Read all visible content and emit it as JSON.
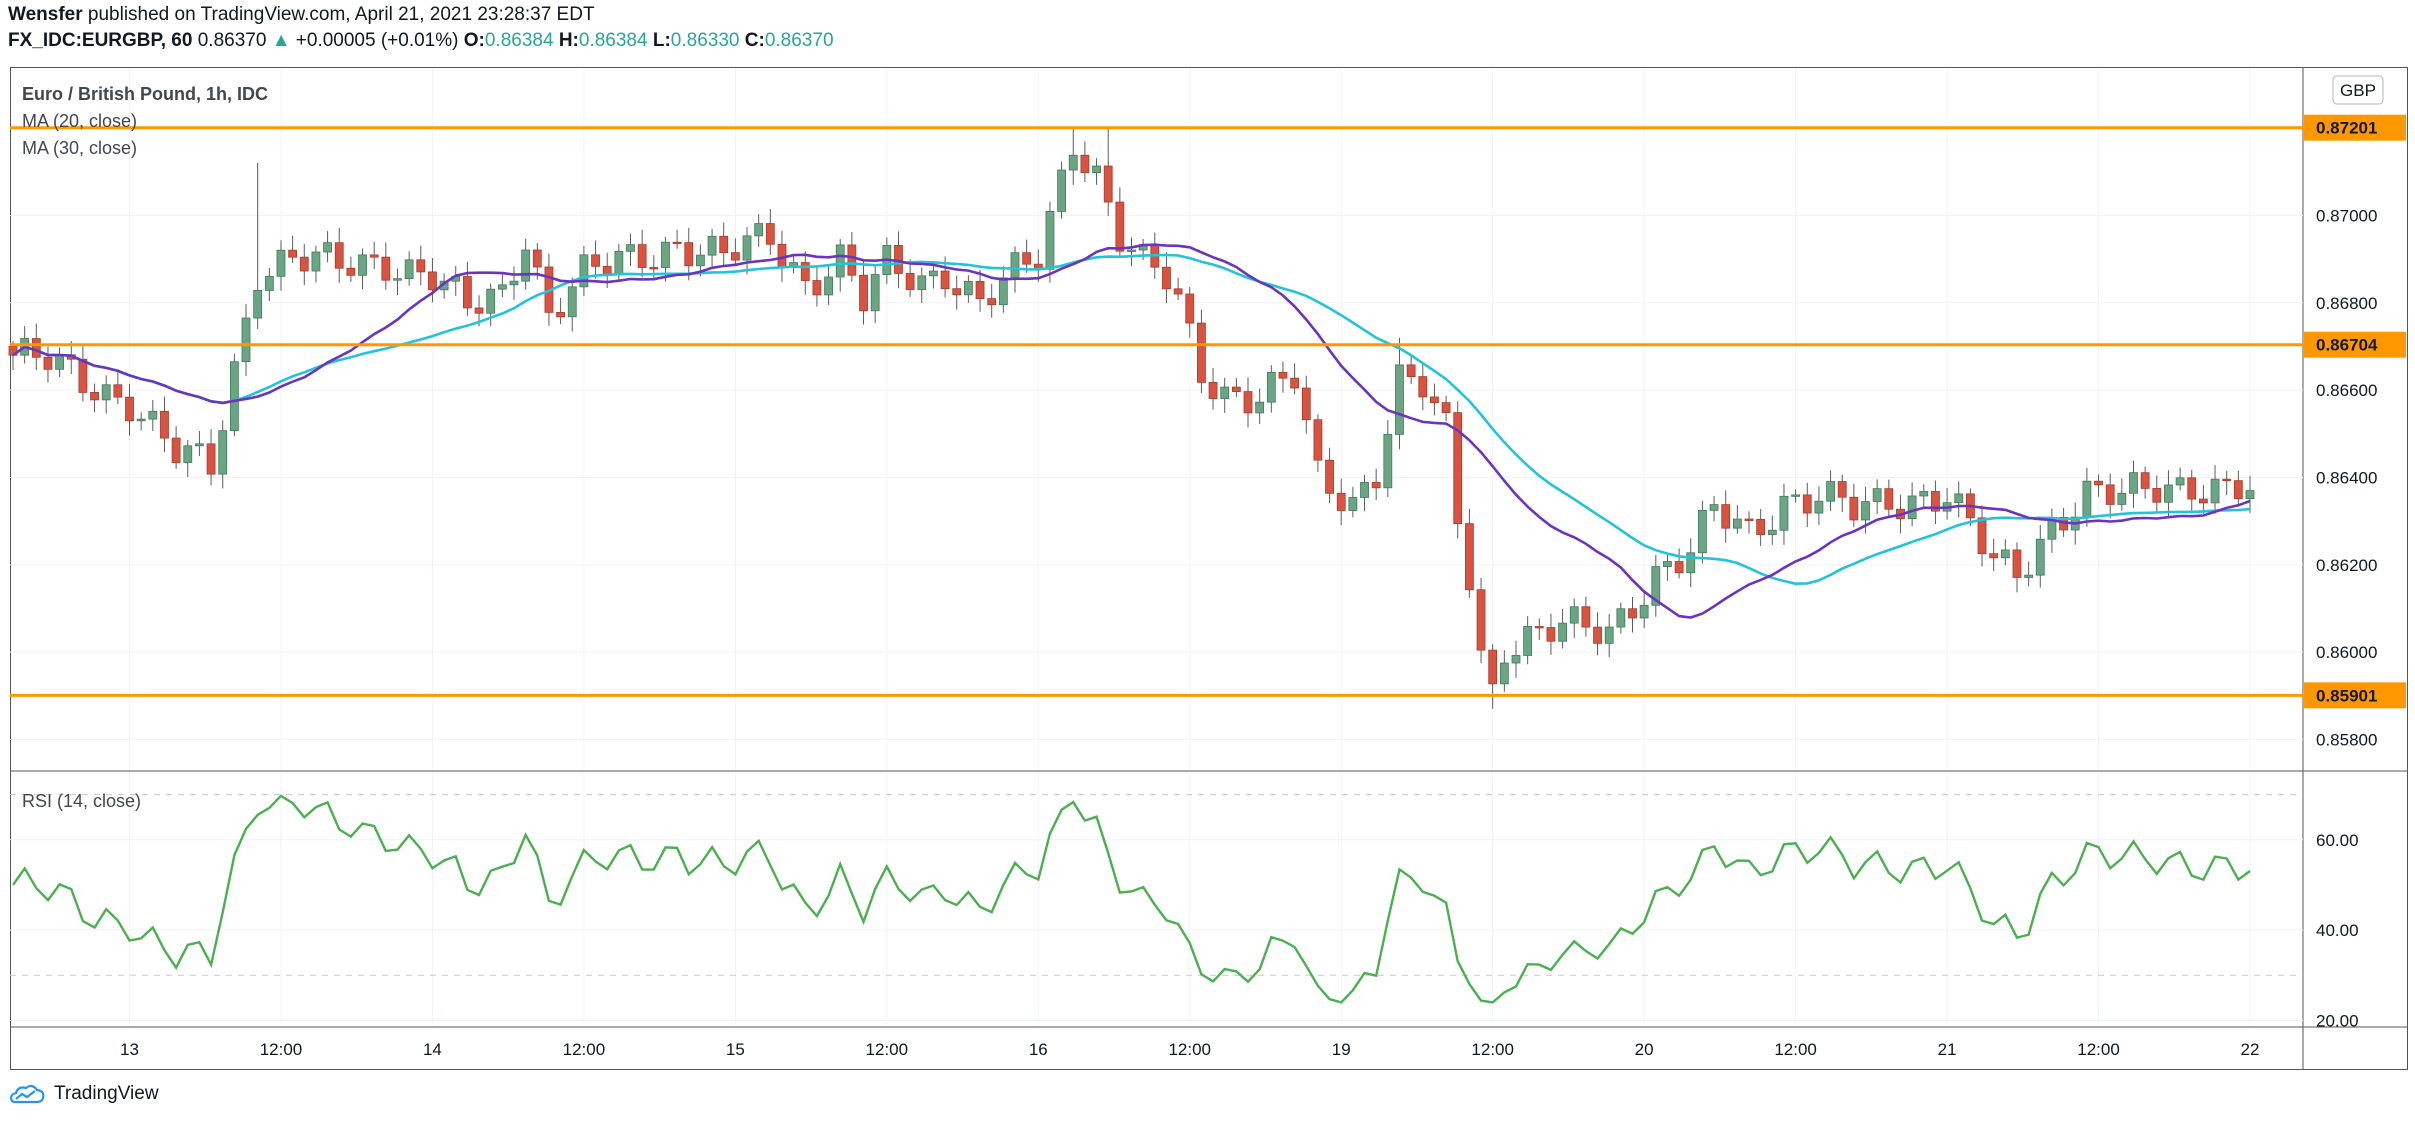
{
  "header": {
    "author": "Wensfer",
    "published_text": "published on TradingView.com, April 21, 2021 23:28:37 EDT",
    "symbol": "FX_IDC:EURGBP, 60",
    "last": "0.86370",
    "change": "+0.00005 (+0.01%)",
    "o_label": "O:",
    "o_value": "0.86384",
    "h_label": "H:",
    "h_value": "0.86384",
    "l_label": "L:",
    "l_value": "0.86330",
    "c_label": "C:",
    "c_value": "0.86370"
  },
  "footer": {
    "brand": "TradingView"
  },
  "chart_data": {
    "type": "candlestick",
    "title": "Euro / British Pound, 1h, IDC",
    "currency": "GBP",
    "indicators": [
      "MA (20, close)",
      "MA (30, close)"
    ],
    "rsi_label": "RSI (14, close)",
    "price_ticks": [
      "0.87000",
      "0.86800",
      "0.86600",
      "0.86400",
      "0.86200",
      "0.86000",
      "0.85800"
    ],
    "price_range": [
      0.8573,
      0.8734
    ],
    "rsi_ticks": [
      "60.00",
      "40.00",
      "20.00"
    ],
    "rsi_range": [
      19,
      75
    ],
    "rsi_bands": [
      70,
      30
    ],
    "x_ticks": [
      "13",
      "12:00",
      "14",
      "12:00",
      "15",
      "12:00",
      "16",
      "12:00",
      "19",
      "12:00",
      "20",
      "12:00",
      "21",
      "12:00",
      "22"
    ],
    "x_tick_index": [
      10,
      23,
      36,
      49,
      62,
      75,
      88,
      101,
      114,
      127,
      140,
      153,
      166,
      179,
      192
    ],
    "bar_count": 193,
    "levels": [
      {
        "value": 0.87201,
        "label": "0.87201"
      },
      {
        "value": 0.86704,
        "label": "0.86704"
      },
      {
        "value": 0.85901,
        "label": "0.85901"
      }
    ],
    "colors": {
      "up": "#6ba583",
      "down": "#d75442",
      "ma20": "#6a34c1",
      "ma30": "#21c4d8",
      "rsi": "#4caf50",
      "level": "#ff9800"
    },
    "close_anchors": [
      [
        0,
        0.8668
      ],
      [
        3,
        0.8666
      ],
      [
        6,
        0.8662
      ],
      [
        10,
        0.8658
      ],
      [
        14,
        0.8645
      ],
      [
        17,
        0.8642
      ],
      [
        19,
        0.8665
      ],
      [
        21,
        0.8688
      ],
      [
        24,
        0.869
      ],
      [
        28,
        0.8688
      ],
      [
        32,
        0.869
      ],
      [
        36,
        0.8686
      ],
      [
        39,
        0.8678
      ],
      [
        42,
        0.8682
      ],
      [
        44,
        0.8696
      ],
      [
        46,
        0.8678
      ],
      [
        49,
        0.8686
      ],
      [
        53,
        0.869
      ],
      [
        57,
        0.8694
      ],
      [
        61,
        0.869
      ],
      [
        65,
        0.8695
      ],
      [
        68,
        0.8685
      ],
      [
        71,
        0.869
      ],
      [
        73,
        0.868
      ],
      [
        75,
        0.8688
      ],
      [
        78,
        0.8685
      ],
      [
        80,
        0.8688
      ],
      [
        83,
        0.868
      ],
      [
        86,
        0.8686
      ],
      [
        88,
        0.869
      ],
      [
        91,
        0.8718
      ],
      [
        93,
        0.871
      ],
      [
        95,
        0.8695
      ],
      [
        97,
        0.8688
      ],
      [
        99,
        0.8685
      ],
      [
        100,
        0.868
      ],
      [
        102,
        0.8665
      ],
      [
        104,
        0.866
      ],
      [
        107,
        0.8658
      ],
      [
        110,
        0.8662
      ],
      [
        112,
        0.864
      ],
      [
        115,
        0.8635
      ],
      [
        117,
        0.8642
      ],
      [
        119,
        0.8662
      ],
      [
        121,
        0.866
      ],
      [
        123,
        0.865
      ],
      [
        124,
        0.863
      ],
      [
        125,
        0.8618
      ],
      [
        126,
        0.86
      ],
      [
        127,
        0.8592
      ],
      [
        128,
        0.8602
      ],
      [
        133,
        0.8605
      ],
      [
        137,
        0.8605
      ],
      [
        139,
        0.8612
      ],
      [
        141,
        0.8618
      ],
      [
        144,
        0.8622
      ],
      [
        146,
        0.8632
      ],
      [
        149,
        0.8628
      ],
      [
        152,
        0.8635
      ],
      [
        155,
        0.8635
      ],
      [
        158,
        0.8632
      ],
      [
        161,
        0.8635
      ],
      [
        164,
        0.8636
      ],
      [
        166,
        0.8636
      ],
      [
        168,
        0.8628
      ],
      [
        170,
        0.862
      ],
      [
        172,
        0.8618
      ],
      [
        175,
        0.863
      ],
      [
        178,
        0.8636
      ],
      [
        181,
        0.8635
      ],
      [
        184,
        0.8638
      ],
      [
        187,
        0.8639
      ],
      [
        190,
        0.8637
      ],
      [
        192,
        0.8637
      ]
    ],
    "spikes": [
      {
        "index": 21,
        "high": 0.8712
      },
      {
        "index": 91,
        "high": 0.872
      },
      {
        "index": 94,
        "high": 0.872
      },
      {
        "index": 127,
        "low": 0.8587
      },
      {
        "index": 119,
        "high": 0.8672
      }
    ]
  }
}
